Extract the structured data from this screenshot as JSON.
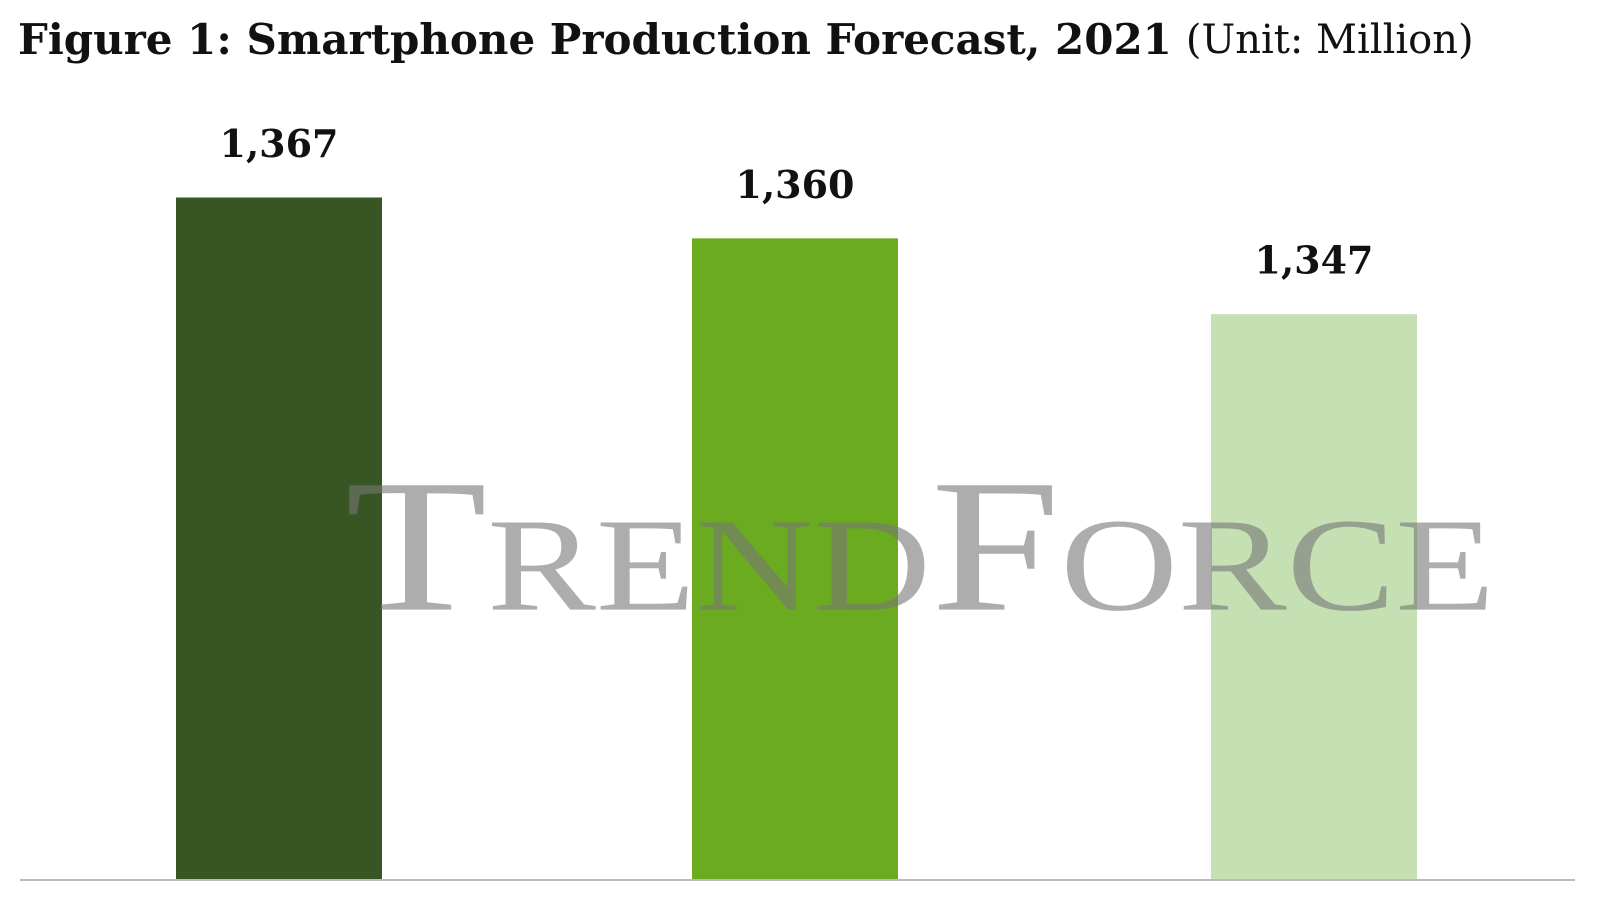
{
  "chart_data": {
    "type": "bar",
    "title": "Figure 1: Smartphone Production Forecast, 2021",
    "unit_note": "(Unit: Million)",
    "watermark": "TrendForce",
    "categories": [
      null,
      null,
      null
    ],
    "values": [
      1367,
      1360,
      1347
    ],
    "value_labels": [
      "1,367",
      "1,360",
      "1,347"
    ],
    "colors": [
      "#375623",
      "#6aab1f",
      "#c5e0b3"
    ],
    "ylim": [
      1250,
      1370
    ]
  }
}
